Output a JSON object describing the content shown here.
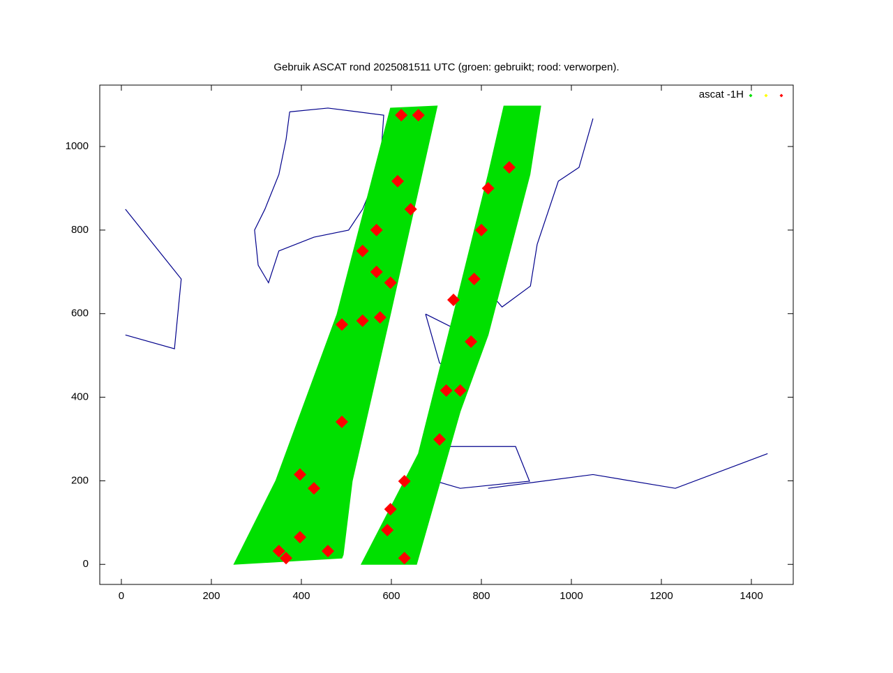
{
  "chart_data": {
    "type": "scatter",
    "title": "Gebruik ASCAT rond 2025081511 UTC (groen: gebruikt; rood: verworpen).",
    "xlim": [
      -48,
      1493
    ],
    "ylim": [
      -48,
      1147
    ],
    "xticks": [
      0,
      200,
      400,
      600,
      800,
      1000,
      1200,
      1400
    ],
    "yticks": [
      0,
      200,
      400,
      600,
      800,
      1000
    ],
    "series": [
      {
        "name": "ascat -1H",
        "color": "#00e000",
        "x": [
          250,
          343,
          479,
          598,
          702,
          598,
          513,
          493,
          490,
          null,
          533,
          660,
          738,
          815,
          850,
          932,
          908,
          815,
          753,
          656
        ],
        "y": [
          0,
          200,
          598,
          1092,
          1097,
          599,
          199,
          23,
          15,
          null,
          0,
          265,
          599,
          933,
          1097,
          1097,
          933,
          549,
          366,
          0
        ]
      },
      {
        "color": "#ffff00",
        "x": [],
        "y": []
      },
      {
        "color": "#ff0000",
        "x": [
          567,
          536,
          598,
          490,
          536,
          575,
          350,
          397,
          459,
          366,
          397,
          428,
          490,
          598,
          629,
          591,
          629,
          722,
          707,
          753,
          800,
          784,
          815,
          862,
          738,
          777,
          622,
          660,
          614,
          643,
          567
        ],
        "y": [
          700,
          750,
          674,
          574,
          583,
          591,
          32,
          65,
          32,
          15,
          215,
          182,
          341,
          132,
          199,
          82,
          15,
          416,
          299,
          416,
          800,
          683,
          900,
          950,
          633,
          533,
          1075,
          1075,
          917,
          850,
          800
        ]
      }
    ],
    "coastlines": {
      "color": "#00008b",
      "x": [
        374,
        459,
        583,
        575,
        536,
        505,
        428,
        350,
        327,
        304,
        296,
        319,
        350,
        366,
        374,
        null,
        909,
        831,
        792,
        846,
        909,
        924,
        971,
        1017,
        1048,
        null,
        676,
        707,
        753,
        769,
        676,
        null,
        707,
        876,
        907,
        753,
        699,
        707,
        null,
        815,
        1048,
        1231,
        1436,
        null,
        9,
        133,
        118,
        9
      ],
      "y": [
        1083,
        1092,
        1075,
        950,
        850,
        800,
        783,
        750,
        674,
        716,
        800,
        850,
        933,
        1017,
        1083,
        null,
        1083,
        917,
        683,
        616,
        666,
        766,
        917,
        950,
        1067,
        null,
        599,
        482,
        449,
        549,
        599,
        null,
        282,
        282,
        199,
        182,
        199,
        282,
        null,
        182,
        215,
        182,
        265,
        null,
        850,
        683,
        516,
        549
      ]
    }
  }
}
